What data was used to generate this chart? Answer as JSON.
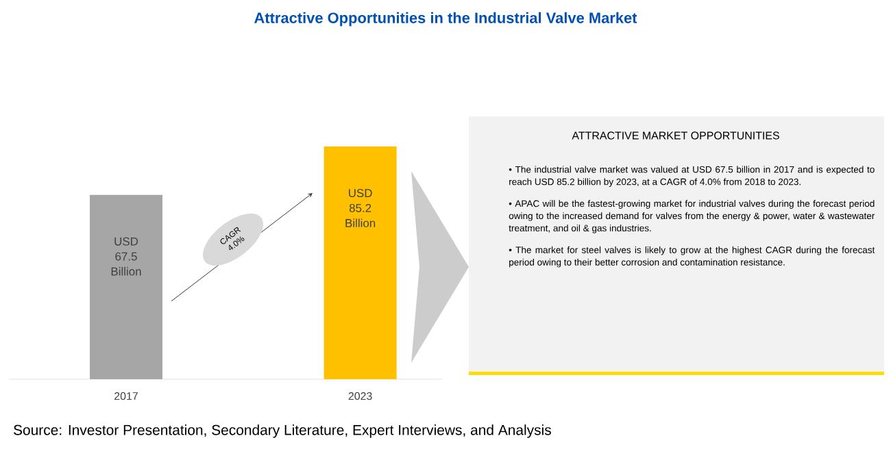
{
  "chart_data": {
    "type": "bar",
    "title": "Attractive Opportunities in the Industrial Valve Market",
    "categories": [
      "2017",
      "2023"
    ],
    "values": [
      67.5,
      85.2
    ],
    "colors": [
      "#a6a6a6",
      "#ffc000"
    ],
    "value_labels": [
      "USD 67.5 Billion",
      "USD 85.2 Billion"
    ],
    "annotations": [
      "CAGR 4.0%",
      "ATTRACTIVE MARKET OPPORTUNITIES",
      "• The industrial valve market was valued at USD 67.5 billion in 2017 and is expected to reach USD 85.2 billion by 2023, at a CAGR of 4.0% from 2018 to 2023.",
      "• APAC will be the fastest-growing market for industrial valves during the forecast period owing to the increased demand for valves from the energy & power, water & wastewater treatment, and oil & gas industries.",
      "• The market for steel valves is likely to grow at the highest CAGR during the forecast period owing to their better corrosion and contamination resistance.",
      "Source: Investor Presentation, Secondary Literature, Expert Interviews, and Analysis"
    ]
  }
}
